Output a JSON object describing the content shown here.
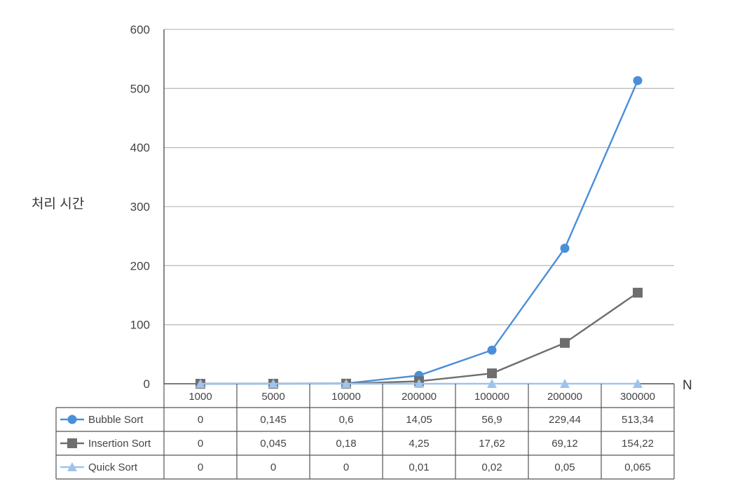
{
  "chart_data": {
    "type": "line",
    "ylabel": "처리 시간",
    "xlabel": "N",
    "ylim": [
      0,
      600
    ],
    "yticks": [
      0,
      100,
      200,
      300,
      400,
      500,
      600
    ],
    "grid": true,
    "legend": "table-left",
    "categories": [
      "1000",
      "5000",
      "10000",
      "200000",
      "100000",
      "200000",
      "300000"
    ],
    "series": [
      {
        "name": "Bubble Sort",
        "marker": "circle",
        "color": "#4a8fd8",
        "values": [
          0,
          0.145,
          0.6,
          14.05,
          56.9,
          229.44,
          513.34
        ],
        "labels": [
          "0",
          "0,145",
          "0,6",
          "14,05",
          "56,9",
          "229,44",
          "513,34"
        ]
      },
      {
        "name": "Insertion Sort",
        "marker": "square",
        "color": "#6e6e6e",
        "values": [
          0,
          0.045,
          0.18,
          4.25,
          17.62,
          69.12,
          154.22
        ],
        "labels": [
          "0",
          "0,045",
          "0,18",
          "4,25",
          "17,62",
          "69,12",
          "154,22"
        ]
      },
      {
        "name": "Quick Sort",
        "marker": "triangle",
        "color": "#9fc3ec",
        "values": [
          0,
          0,
          0,
          0.01,
          0.02,
          0.05,
          0.065
        ],
        "labels": [
          "0",
          "0",
          "0",
          "0,01",
          "0,02",
          "0,05",
          "0,065"
        ]
      }
    ]
  }
}
